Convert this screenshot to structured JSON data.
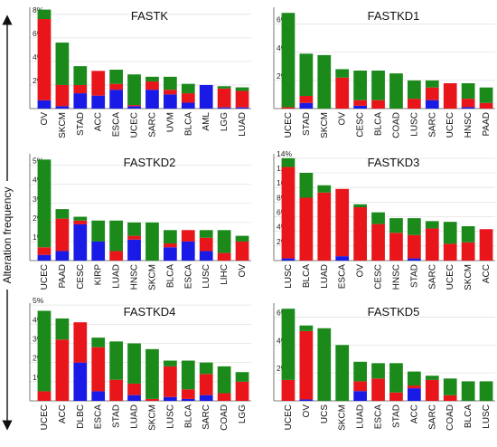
{
  "colors": {
    "amplification": "#e8161b",
    "mutation": "#1b8a1b",
    "deletion": "#1a1ae6"
  },
  "y_axis_label": "Alteration frequency",
  "chart_data": [
    {
      "type": "bar",
      "stacked": true,
      "title": "FASTK",
      "yticks": [
        "2%",
        "4%",
        "6%",
        "8%"
      ],
      "ylim": [
        0,
        8.6
      ],
      "categories": [
        "OV",
        "SKCM",
        "STAD",
        "ACC",
        "ESCA",
        "UCEC",
        "SARC",
        "UVM",
        "BLCA",
        "AML",
        "LGG",
        "LUAD"
      ],
      "series": [
        {
          "key": "deletion",
          "values": [
            0.7,
            0.2,
            1.3,
            1.1,
            1.6,
            0.2,
            1.6,
            1.2,
            0.5,
            2.0,
            0.1,
            0.1
          ]
        },
        {
          "key": "amplification",
          "values": [
            6.9,
            1.8,
            0.7,
            2.1,
            0.5,
            0.1,
            0.7,
            0.4,
            0.8,
            0.0,
            1.6,
            1.4
          ]
        },
        {
          "key": "mutation",
          "values": [
            0.8,
            3.6,
            1.6,
            0.0,
            1.2,
            2.6,
            0.4,
            1.1,
            0.8,
            0.0,
            0.2,
            0.3
          ]
        }
      ]
    },
    {
      "type": "bar",
      "stacked": true,
      "title": "FASTKD1",
      "yticks": [
        "2%",
        "4%",
        "6%"
      ],
      "ylim": [
        0,
        7.2
      ],
      "categories": [
        "UCEC",
        "STAD",
        "SKCM",
        "OV",
        "CESC",
        "BLCA",
        "COAD",
        "LUSC",
        "SARC",
        "UCEC",
        "HNSC",
        "PAAD"
      ],
      "series": [
        {
          "key": "deletion",
          "values": [
            0.0,
            0.4,
            0.0,
            0.0,
            0.2,
            0.0,
            0.0,
            0.0,
            0.6,
            0.0,
            0.1,
            0.0
          ]
        },
        {
          "key": "amplification",
          "values": [
            0.1,
            0.5,
            0.0,
            2.2,
            0.4,
            0.6,
            0.0,
            0.7,
            0.9,
            1.8,
            0.6,
            0.4
          ]
        },
        {
          "key": "mutation",
          "values": [
            6.7,
            3.0,
            3.8,
            0.6,
            2.1,
            2.1,
            2.5,
            1.3,
            0.5,
            0.0,
            1.1,
            1.1
          ]
        }
      ]
    },
    {
      "type": "bar",
      "stacked": true,
      "title": "FASTKD2",
      "yticks": [
        "1%",
        "2%",
        "3%",
        "4%",
        "5%"
      ],
      "ylim": [
        0,
        5.6
      ],
      "categories": [
        "UCEC",
        "PAAD",
        "CESC",
        "KIRP",
        "LUAD",
        "HNSC",
        "SKCM",
        "BLCA",
        "ESCA",
        "LUSC",
        "LIHC",
        "OV"
      ],
      "series": [
        {
          "key": "deletion",
          "values": [
            0.3,
            0.5,
            1.9,
            1.0,
            0.0,
            1.1,
            0.0,
            0.7,
            1.0,
            0.5,
            0.0,
            0.0
          ]
        },
        {
          "key": "amplification",
          "values": [
            0.4,
            1.7,
            0.2,
            0.0,
            0.5,
            0.2,
            0.0,
            0.2,
            0.6,
            0.7,
            0.4,
            1.0
          ]
        },
        {
          "key": "mutation",
          "values": [
            4.6,
            0.5,
            0.2,
            1.1,
            1.6,
            0.7,
            2.0,
            0.7,
            0.0,
            0.4,
            1.2,
            0.3
          ]
        }
      ]
    },
    {
      "type": "bar",
      "stacked": true,
      "title": "FASTKD3",
      "yticks": [
        "2%",
        "4%",
        "6%",
        "8%",
        "10%",
        "12%",
        "14%"
      ],
      "ylim": [
        0,
        14.6
      ],
      "categories": [
        "LUSC",
        "BLCA",
        "LUAD",
        "ESCA",
        "OV",
        "CESC",
        "HNSC",
        "STAD",
        "SARC",
        "UCEC",
        "SKCM",
        "ACC"
      ],
      "series": [
        {
          "key": "deletion",
          "values": [
            0.3,
            0.0,
            0.0,
            0.6,
            0.0,
            0.0,
            0.0,
            0.3,
            0.0,
            0.0,
            0.0,
            0.0
          ]
        },
        {
          "key": "amplification",
          "values": [
            12.5,
            8.6,
            9.3,
            9.2,
            7.3,
            5.0,
            3.8,
            3.2,
            4.4,
            2.3,
            2.5,
            4.3
          ]
        },
        {
          "key": "mutation",
          "values": [
            1.2,
            3.4,
            1.0,
            0.0,
            0.4,
            1.6,
            2.0,
            2.3,
            1.0,
            3.0,
            2.2,
            0.0
          ]
        }
      ]
    },
    {
      "type": "bar",
      "stacked": true,
      "title": "FASTKD4",
      "yticks": [
        "1%",
        "2%",
        "3%",
        "4%",
        "5%"
      ],
      "ylim": [
        0,
        5.1
      ],
      "categories": [
        "UCEC",
        "ACC",
        "DLBC",
        "ESCA",
        "STAD",
        "LUAD",
        "SKCM",
        "LUSC",
        "BLCA",
        "SARC",
        "COAD",
        "LGG"
      ],
      "series": [
        {
          "key": "deletion",
          "values": [
            0.0,
            0.0,
            2.0,
            0.5,
            0.0,
            0.3,
            0.0,
            0.2,
            0.1,
            0.3,
            0.0,
            0.0
          ]
        },
        {
          "key": "amplification",
          "values": [
            0.5,
            3.2,
            2.1,
            2.3,
            1.1,
            0.6,
            0.1,
            1.6,
            0.5,
            1.1,
            0.4,
            1.0
          ]
        },
        {
          "key": "mutation",
          "values": [
            4.2,
            1.1,
            0.0,
            0.5,
            2.0,
            2.1,
            2.6,
            0.3,
            1.5,
            0.6,
            1.4,
            0.5
          ]
        }
      ]
    },
    {
      "type": "bar",
      "stacked": true,
      "title": "FASTKD5",
      "yticks": [
        "2%",
        "4%",
        "6%"
      ],
      "ylim": [
        0,
        7.0
      ],
      "categories": [
        "UCEC",
        "OV",
        "UCS",
        "SKCM",
        "LUAD",
        "ESCA",
        "STAD",
        "ACC",
        "SARC",
        "COAD",
        "BLCA",
        "LUSC"
      ],
      "series": [
        {
          "key": "deletion",
          "values": [
            0.0,
            0.1,
            0.0,
            0.0,
            0.7,
            0.0,
            0.0,
            0.9,
            0.0,
            0.0,
            0.0,
            0.0
          ]
        },
        {
          "key": "amplification",
          "values": [
            1.5,
            4.9,
            0.0,
            0.0,
            0.7,
            1.6,
            0.6,
            0.2,
            1.5,
            0.4,
            0.0,
            0.0
          ]
        },
        {
          "key": "mutation",
          "values": [
            5.1,
            0.4,
            5.2,
            4.0,
            1.4,
            1.1,
            2.1,
            1.0,
            0.3,
            1.2,
            1.4,
            1.4
          ]
        }
      ]
    }
  ]
}
